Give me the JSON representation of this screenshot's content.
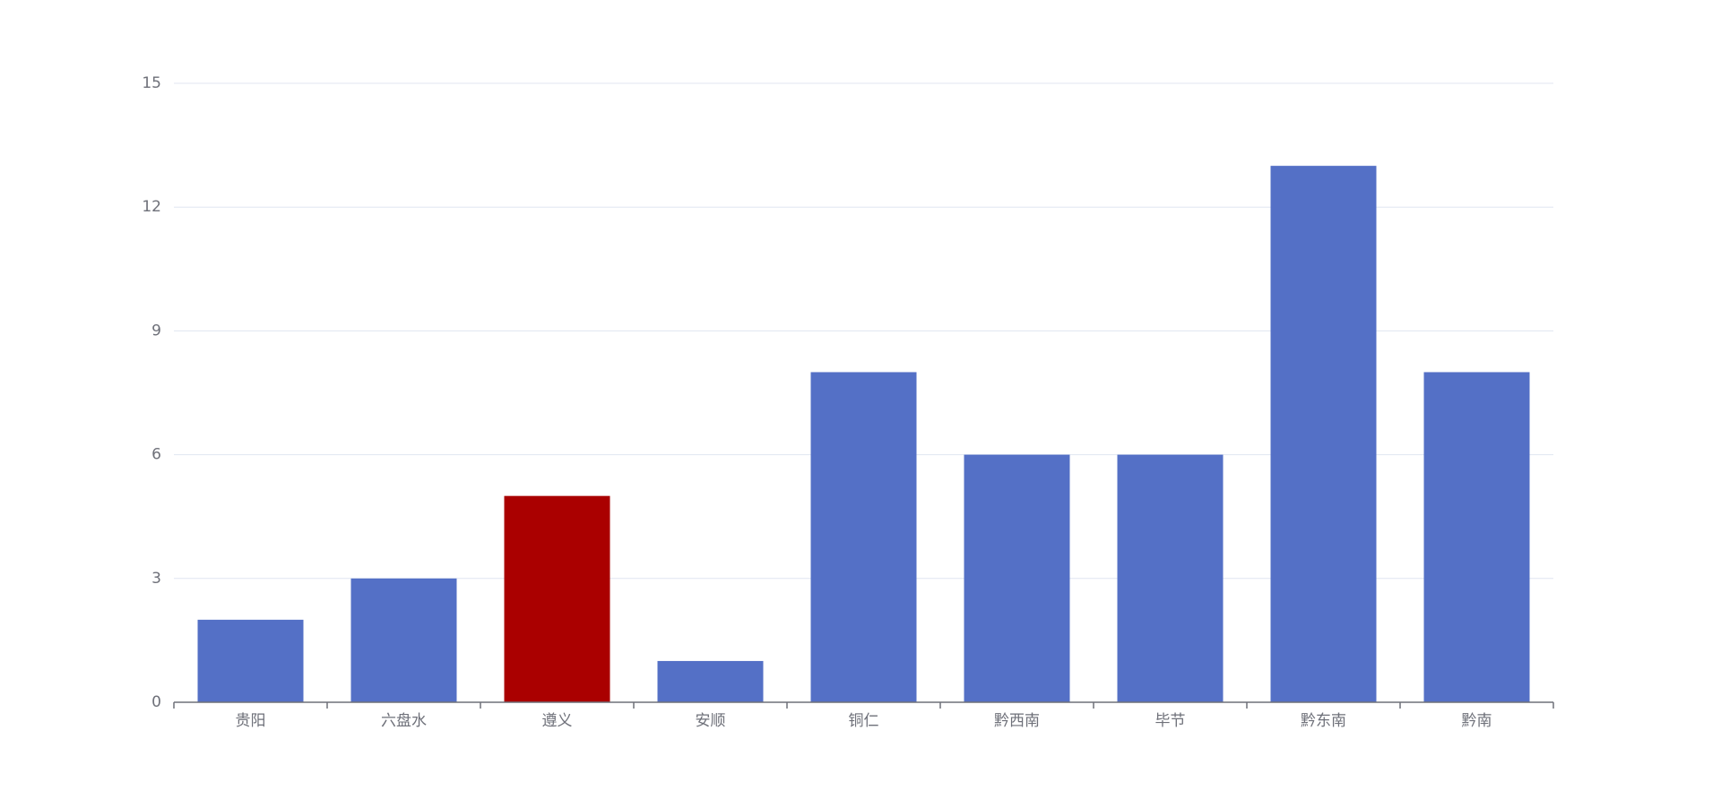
{
  "chart_data": {
    "type": "bar",
    "categories": [
      "贵阳",
      "六盘水",
      "遵义",
      "安顺",
      "铜仁",
      "黔西南",
      "毕节",
      "黔东南",
      "黔南"
    ],
    "values": [
      2,
      3,
      5,
      1,
      8,
      6,
      6,
      13,
      8
    ],
    "colors": [
      "#5470c6",
      "#5470c6",
      "#aa0000",
      "#5470c6",
      "#5470c6",
      "#5470c6",
      "#5470c6",
      "#5470c6",
      "#5470c6"
    ],
    "ylim": [
      0,
      15
    ],
    "yticks": [
      0,
      3,
      6,
      9,
      12,
      15
    ],
    "grid": true
  }
}
